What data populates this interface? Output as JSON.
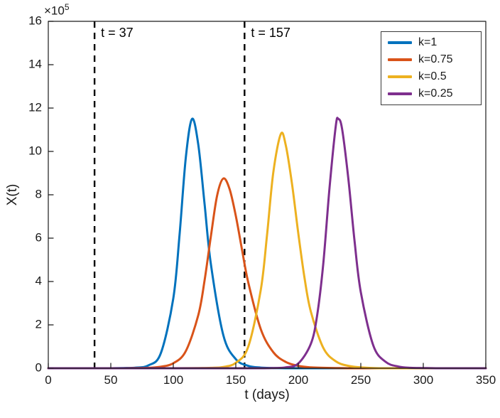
{
  "chart_data": {
    "type": "line",
    "title": "",
    "xlabel": "t (days)",
    "ylabel": "X(t)",
    "y_unit_multiplier": "1e5",
    "y_multiplier_base": "×10",
    "y_multiplier_exp": "5",
    "xlim": [
      0,
      350
    ],
    "ylim": [
      0,
      16
    ],
    "xticks": [
      0,
      50,
      100,
      150,
      200,
      250,
      300,
      350
    ],
    "yticks": [
      0,
      2,
      4,
      6,
      8,
      10,
      12,
      14,
      16
    ],
    "grid": false,
    "axis_color": "#1a1a1a",
    "annotations": [
      {
        "label": "t = 37",
        "x": 37,
        "line_style": "dashed",
        "color": "#000000"
      },
      {
        "label": "t = 157",
        "x": 157,
        "line_style": "dashed",
        "color": "#000000"
      }
    ],
    "legend": {
      "position": "top-right",
      "entries": [
        {
          "label": "k=1",
          "color": "#0072BD"
        },
        {
          "label": "k=0.75",
          "color": "#D95319"
        },
        {
          "label": "k=0.5",
          "color": "#EDB120"
        },
        {
          "label": "k=0.25",
          "color": "#7E2F8E"
        }
      ]
    },
    "series": [
      {
        "name": "k=1",
        "color": "#0072BD",
        "peak": {
          "x": 115,
          "y": 11.5
        },
        "points": [
          [
            0,
            0
          ],
          [
            20,
            0
          ],
          [
            40,
            0
          ],
          [
            50,
            0
          ],
          [
            60,
            0.01
          ],
          [
            70,
            0.03
          ],
          [
            80,
            0.13
          ],
          [
            90,
            0.69
          ],
          [
            100,
            3.22
          ],
          [
            105,
            6.15
          ],
          [
            110,
            9.71
          ],
          [
            115,
            11.5
          ],
          [
            120,
            10.31
          ],
          [
            125,
            7.59
          ],
          [
            130,
            4.83
          ],
          [
            140,
            1.53
          ],
          [
            150,
            0.42
          ],
          [
            160,
            0.11
          ],
          [
            170,
            0.03
          ],
          [
            180,
            0.01
          ],
          [
            190,
            0
          ],
          [
            210,
            0
          ],
          [
            230,
            0
          ],
          [
            250,
            0
          ],
          [
            270,
            0
          ],
          [
            290,
            0
          ],
          [
            310,
            0
          ],
          [
            330,
            0
          ],
          [
            350,
            0
          ]
        ]
      },
      {
        "name": "k=0.75",
        "color": "#D95319",
        "peak": {
          "x": 140,
          "y": 8.75
        },
        "points": [
          [
            0,
            0
          ],
          [
            40,
            0
          ],
          [
            60,
            0
          ],
          [
            70,
            0.01
          ],
          [
            80,
            0.02
          ],
          [
            90,
            0.07
          ],
          [
            100,
            0.23
          ],
          [
            110,
            0.79
          ],
          [
            120,
            2.45
          ],
          [
            125,
            4.04
          ],
          [
            130,
            6.06
          ],
          [
            135,
            7.95
          ],
          [
            140,
            8.75
          ],
          [
            145,
            8.27
          ],
          [
            150,
            7.03
          ],
          [
            155,
            5.46
          ],
          [
            160,
            3.95
          ],
          [
            170,
            1.8
          ],
          [
            180,
            0.74
          ],
          [
            190,
            0.29
          ],
          [
            200,
            0.11
          ],
          [
            210,
            0.04
          ],
          [
            220,
            0.02
          ],
          [
            230,
            0.01
          ],
          [
            240,
            0
          ],
          [
            260,
            0
          ],
          [
            280,
            0
          ],
          [
            300,
            0
          ],
          [
            320,
            0
          ],
          [
            350,
            0
          ]
        ]
      },
      {
        "name": "k=0.5",
        "color": "#EDB120",
        "peak": {
          "x": 186,
          "y": 10.8
        },
        "points": [
          [
            0,
            0
          ],
          [
            60,
            0
          ],
          [
            100,
            0
          ],
          [
            120,
            0.01
          ],
          [
            130,
            0.02
          ],
          [
            140,
            0.06
          ],
          [
            150,
            0.25
          ],
          [
            160,
            1
          ],
          [
            170,
            3.62
          ],
          [
            175,
            6.15
          ],
          [
            180,
            9.03
          ],
          [
            186,
            10.8
          ],
          [
            190,
            10.28
          ],
          [
            195,
            8.49
          ],
          [
            200,
            6.22
          ],
          [
            205,
            4.16
          ],
          [
            210,
            2.62
          ],
          [
            220,
            0.94
          ],
          [
            230,
            0.32
          ],
          [
            240,
            0.11
          ],
          [
            250,
            0.04
          ],
          [
            260,
            0.01
          ],
          [
            270,
            0
          ],
          [
            290,
            0
          ],
          [
            310,
            0
          ],
          [
            330,
            0
          ],
          [
            350,
            0
          ]
        ]
      },
      {
        "name": "k=0.25",
        "color": "#7E2F8E",
        "peak": {
          "x": 232,
          "y": 11.5
        },
        "points": [
          [
            0,
            0
          ],
          [
            80,
            0
          ],
          [
            140,
            0
          ],
          [
            170,
            0
          ],
          [
            180,
            0.01
          ],
          [
            190,
            0.04
          ],
          [
            200,
            0.22
          ],
          [
            210,
            1.12
          ],
          [
            215,
            2.41
          ],
          [
            220,
            4.83
          ],
          [
            225,
            8.33
          ],
          [
            230,
            11.18
          ],
          [
            232,
            11.5
          ],
          [
            235,
            11.05
          ],
          [
            240,
            8.76
          ],
          [
            245,
            5.87
          ],
          [
            250,
            3.51
          ],
          [
            260,
            1.05
          ],
          [
            270,
            0.29
          ],
          [
            280,
            0.08
          ],
          [
            290,
            0.02
          ],
          [
            300,
            0.01
          ],
          [
            310,
            0
          ],
          [
            330,
            0
          ],
          [
            350,
            0
          ]
        ]
      }
    ]
  }
}
